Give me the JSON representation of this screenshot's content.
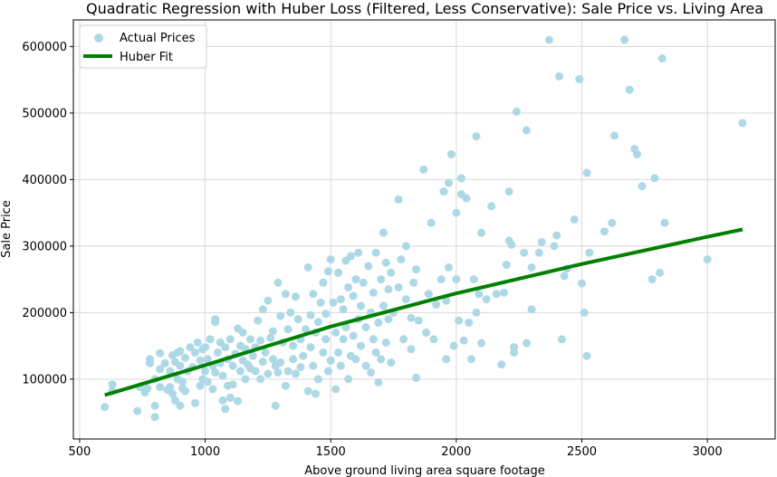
{
  "chart_data": {
    "type": "scatter",
    "title": "Quadratic Regression with Huber Loss (Filtered, Less Conservative): Sale Price vs. Living Area",
    "xlabel": "Above ground living area square footage",
    "ylabel": "Sale Price",
    "xlim": [
      475,
      3270
    ],
    "ylim": [
      10000,
      640000
    ],
    "xticks": [
      500,
      1000,
      1500,
      2000,
      2500,
      3000
    ],
    "yticks": [
      100000,
      200000,
      300000,
      400000,
      500000,
      600000
    ],
    "xtick_labels": [
      "500",
      "1000",
      "1500",
      "2000",
      "2500",
      "3000"
    ],
    "ytick_labels": [
      "100000",
      "200000",
      "300000",
      "400000",
      "500000",
      "600000"
    ],
    "grid": true,
    "legend": {
      "position": "top-left",
      "entries": [
        "Actual Prices",
        "Huber Fit"
      ]
    },
    "series": [
      {
        "name": "Actual Prices",
        "kind": "scatter",
        "color": "#add8e6",
        "points": [
          [
            600,
            58000
          ],
          [
            630,
            82000
          ],
          [
            630,
            92000
          ],
          [
            730,
            52000
          ],
          [
            740,
            88000
          ],
          [
            760,
            80000
          ],
          [
            770,
            86000
          ],
          [
            780,
            124000
          ],
          [
            780,
            130000
          ],
          [
            800,
            43000
          ],
          [
            800,
            60000
          ],
          [
            800,
            100000
          ],
          [
            820,
            88000
          ],
          [
            820,
            115000
          ],
          [
            820,
            139000
          ],
          [
            840,
            124000
          ],
          [
            850,
            84000
          ],
          [
            860,
            88000
          ],
          [
            860,
            112000
          ],
          [
            870,
            78000
          ],
          [
            870,
            136000
          ],
          [
            880,
            68000
          ],
          [
            880,
            126000
          ],
          [
            890,
            100000
          ],
          [
            890,
            140000
          ],
          [
            900,
            60000
          ],
          [
            900,
            120000
          ],
          [
            900,
            142000
          ],
          [
            910,
            86000
          ],
          [
            910,
            96000
          ],
          [
            920,
            82000
          ],
          [
            920,
            132000
          ],
          [
            930,
            112000
          ],
          [
            940,
            148000
          ],
          [
            950,
            118000
          ],
          [
            960,
            64000
          ],
          [
            960,
            140000
          ],
          [
            970,
            155000
          ],
          [
            980,
            90000
          ],
          [
            980,
            128000
          ],
          [
            990,
            100000
          ],
          [
            990,
            145000
          ],
          [
            1000,
            112000
          ],
          [
            1000,
            148000
          ],
          [
            1010,
            96000
          ],
          [
            1010,
            130000
          ],
          [
            1020,
            160000
          ],
          [
            1030,
            85000
          ],
          [
            1030,
            120000
          ],
          [
            1040,
            110000
          ],
          [
            1040,
            186000
          ],
          [
            1040,
            190000
          ],
          [
            1050,
            140000
          ],
          [
            1060,
            124000
          ],
          [
            1060,
            155000
          ],
          [
            1070,
            68000
          ],
          [
            1070,
            105000
          ],
          [
            1080,
            55000
          ],
          [
            1080,
            148000
          ],
          [
            1090,
            90000
          ],
          [
            1090,
            130000
          ],
          [
            1100,
            72000
          ],
          [
            1100,
            160000
          ],
          [
            1110,
            92000
          ],
          [
            1110,
            120000
          ],
          [
            1120,
            138000
          ],
          [
            1130,
            67000
          ],
          [
            1130,
            176000
          ],
          [
            1140,
            112000
          ],
          [
            1140,
            150000
          ],
          [
            1150,
            128000
          ],
          [
            1150,
            170000
          ],
          [
            1160,
            100000
          ],
          [
            1160,
            145000
          ],
          [
            1170,
            122000
          ],
          [
            1180,
            116000
          ],
          [
            1180,
            160000
          ],
          [
            1190,
            135000
          ],
          [
            1200,
            112000
          ],
          [
            1200,
            148000
          ],
          [
            1210,
            188000
          ],
          [
            1220,
            100000
          ],
          [
            1220,
            158000
          ],
          [
            1230,
            126000
          ],
          [
            1230,
            205000
          ],
          [
            1240,
            140000
          ],
          [
            1250,
            108000
          ],
          [
            1250,
            218000
          ],
          [
            1260,
            162000
          ],
          [
            1270,
            130000
          ],
          [
            1270,
            172000
          ],
          [
            1280,
            60000
          ],
          [
            1280,
            120000
          ],
          [
            1290,
            110000
          ],
          [
            1290,
            245000
          ],
          [
            1300,
            125000
          ],
          [
            1300,
            195000
          ],
          [
            1310,
            155000
          ],
          [
            1320,
            90000
          ],
          [
            1320,
            228000
          ],
          [
            1330,
            112000
          ],
          [
            1330,
            175000
          ],
          [
            1340,
            200000
          ],
          [
            1350,
            130000
          ],
          [
            1350,
            150000
          ],
          [
            1360,
            224000
          ],
          [
            1360,
            108000
          ],
          [
            1370,
            190000
          ],
          [
            1380,
            118000
          ],
          [
            1380,
            160000
          ],
          [
            1390,
            135000
          ],
          [
            1400,
            175000
          ],
          [
            1410,
            82000
          ],
          [
            1410,
            268000
          ],
          [
            1420,
            148000
          ],
          [
            1420,
            196000
          ],
          [
            1430,
            120000
          ],
          [
            1430,
            228000
          ],
          [
            1440,
            78000
          ],
          [
            1440,
            170000
          ],
          [
            1450,
            100000
          ],
          [
            1450,
            186000
          ],
          [
            1460,
            215000
          ],
          [
            1470,
            140000
          ],
          [
            1470,
            245000
          ],
          [
            1480,
            160000
          ],
          [
            1480,
            198000
          ],
          [
            1490,
            112000
          ],
          [
            1490,
            262000
          ],
          [
            1500,
            128000
          ],
          [
            1500,
            280000
          ],
          [
            1510,
            215000
          ],
          [
            1520,
            85000
          ],
          [
            1520,
            170000
          ],
          [
            1530,
            140000
          ],
          [
            1530,
            260000
          ],
          [
            1540,
            120000
          ],
          [
            1540,
            220000
          ],
          [
            1550,
            160000
          ],
          [
            1550,
            205000
          ],
          [
            1560,
            178000
          ],
          [
            1560,
            278000
          ],
          [
            1570,
            100000
          ],
          [
            1570,
            238000
          ],
          [
            1580,
            135000
          ],
          [
            1580,
            285000
          ],
          [
            1590,
            165000
          ],
          [
            1590,
            225000
          ],
          [
            1600,
            130000
          ],
          [
            1600,
            250000
          ],
          [
            1610,
            190000
          ],
          [
            1610,
            290000
          ],
          [
            1620,
            150000
          ],
          [
            1620,
            210000
          ],
          [
            1630,
            245000
          ],
          [
            1640,
            120000
          ],
          [
            1640,
            178000
          ],
          [
            1650,
            270000
          ],
          [
            1660,
            110000
          ],
          [
            1660,
            200000
          ],
          [
            1670,
            160000
          ],
          [
            1670,
            230000
          ],
          [
            1680,
            140000
          ],
          [
            1680,
            290000
          ],
          [
            1690,
            95000
          ],
          [
            1690,
            185000
          ],
          [
            1700,
            130000
          ],
          [
            1700,
            250000
          ],
          [
            1710,
            210000
          ],
          [
            1710,
            320000
          ],
          [
            1720,
            155000
          ],
          [
            1720,
            275000
          ],
          [
            1730,
            190000
          ],
          [
            1730,
            235000
          ],
          [
            1740,
            125000
          ],
          [
            1740,
            260000
          ],
          [
            1750,
            200000
          ],
          [
            1770,
            370000
          ],
          [
            1770,
            238000
          ],
          [
            1780,
            280000
          ],
          [
            1790,
            160000
          ],
          [
            1800,
            220000
          ],
          [
            1800,
            300000
          ],
          [
            1820,
            145000
          ],
          [
            1820,
            192000
          ],
          [
            1830,
            245000
          ],
          [
            1840,
            102000
          ],
          [
            1840,
            265000
          ],
          [
            1850,
            188000
          ],
          [
            1870,
            415000
          ],
          [
            1880,
            170000
          ],
          [
            1890,
            228000
          ],
          [
            1900,
            335000
          ],
          [
            1910,
            160000
          ],
          [
            1920,
            212000
          ],
          [
            1940,
            250000
          ],
          [
            1950,
            382000
          ],
          [
            1960,
            130000
          ],
          [
            1960,
            218000
          ],
          [
            1970,
            395000
          ],
          [
            1970,
            268000
          ],
          [
            1980,
            438000
          ],
          [
            1990,
            150000
          ],
          [
            2000,
            250000
          ],
          [
            2000,
            350000
          ],
          [
            2010,
            188000
          ],
          [
            2020,
            378000
          ],
          [
            2020,
            402000
          ],
          [
            2030,
            158000
          ],
          [
            2040,
            372000
          ],
          [
            2050,
            185000
          ],
          [
            2060,
            130000
          ],
          [
            2070,
            250000
          ],
          [
            2080,
            465000
          ],
          [
            2080,
            200000
          ],
          [
            2090,
            228000
          ],
          [
            2100,
            320000
          ],
          [
            2100,
            154000
          ],
          [
            2120,
            220000
          ],
          [
            2140,
            360000
          ],
          [
            2160,
            228000
          ],
          [
            2180,
            122000
          ],
          [
            2190,
            230000
          ],
          [
            2200,
            272000
          ],
          [
            2210,
            382000
          ],
          [
            2210,
            308000
          ],
          [
            2220,
            302000
          ],
          [
            2230,
            148000
          ],
          [
            2230,
            140000
          ],
          [
            2240,
            502000
          ],
          [
            2270,
            290000
          ],
          [
            2280,
            474000
          ],
          [
            2280,
            154000
          ],
          [
            2300,
            268000
          ],
          [
            2300,
            205000
          ],
          [
            2330,
            290000
          ],
          [
            2340,
            306000
          ],
          [
            2370,
            610000
          ],
          [
            2390,
            300000
          ],
          [
            2400,
            316000
          ],
          [
            2410,
            555000
          ],
          [
            2420,
            160000
          ],
          [
            2430,
            255000
          ],
          [
            2440,
            266000
          ],
          [
            2470,
            340000
          ],
          [
            2490,
            551000
          ],
          [
            2500,
            244000
          ],
          [
            2510,
            200000
          ],
          [
            2520,
            410000
          ],
          [
            2520,
            135000
          ],
          [
            2530,
            290000
          ],
          [
            2590,
            322000
          ],
          [
            2620,
            335000
          ],
          [
            2630,
            466000
          ],
          [
            2670,
            610000
          ],
          [
            2690,
            535000
          ],
          [
            2710,
            446000
          ],
          [
            2720,
            438000
          ],
          [
            2740,
            390000
          ],
          [
            2780,
            250000
          ],
          [
            2790,
            402000
          ],
          [
            2810,
            260000
          ],
          [
            2820,
            582000
          ],
          [
            2830,
            335000
          ],
          [
            3000,
            280000
          ],
          [
            3140,
            485000
          ]
        ]
      },
      {
        "name": "Huber Fit",
        "kind": "line",
        "color": "#008000",
        "points": [
          [
            600,
            76000
          ],
          [
            1000,
            121000
          ],
          [
            1500,
            179000
          ],
          [
            2000,
            229000
          ],
          [
            2500,
            273000
          ],
          [
            3000,
            314000
          ],
          [
            3140,
            325000
          ]
        ]
      }
    ]
  }
}
